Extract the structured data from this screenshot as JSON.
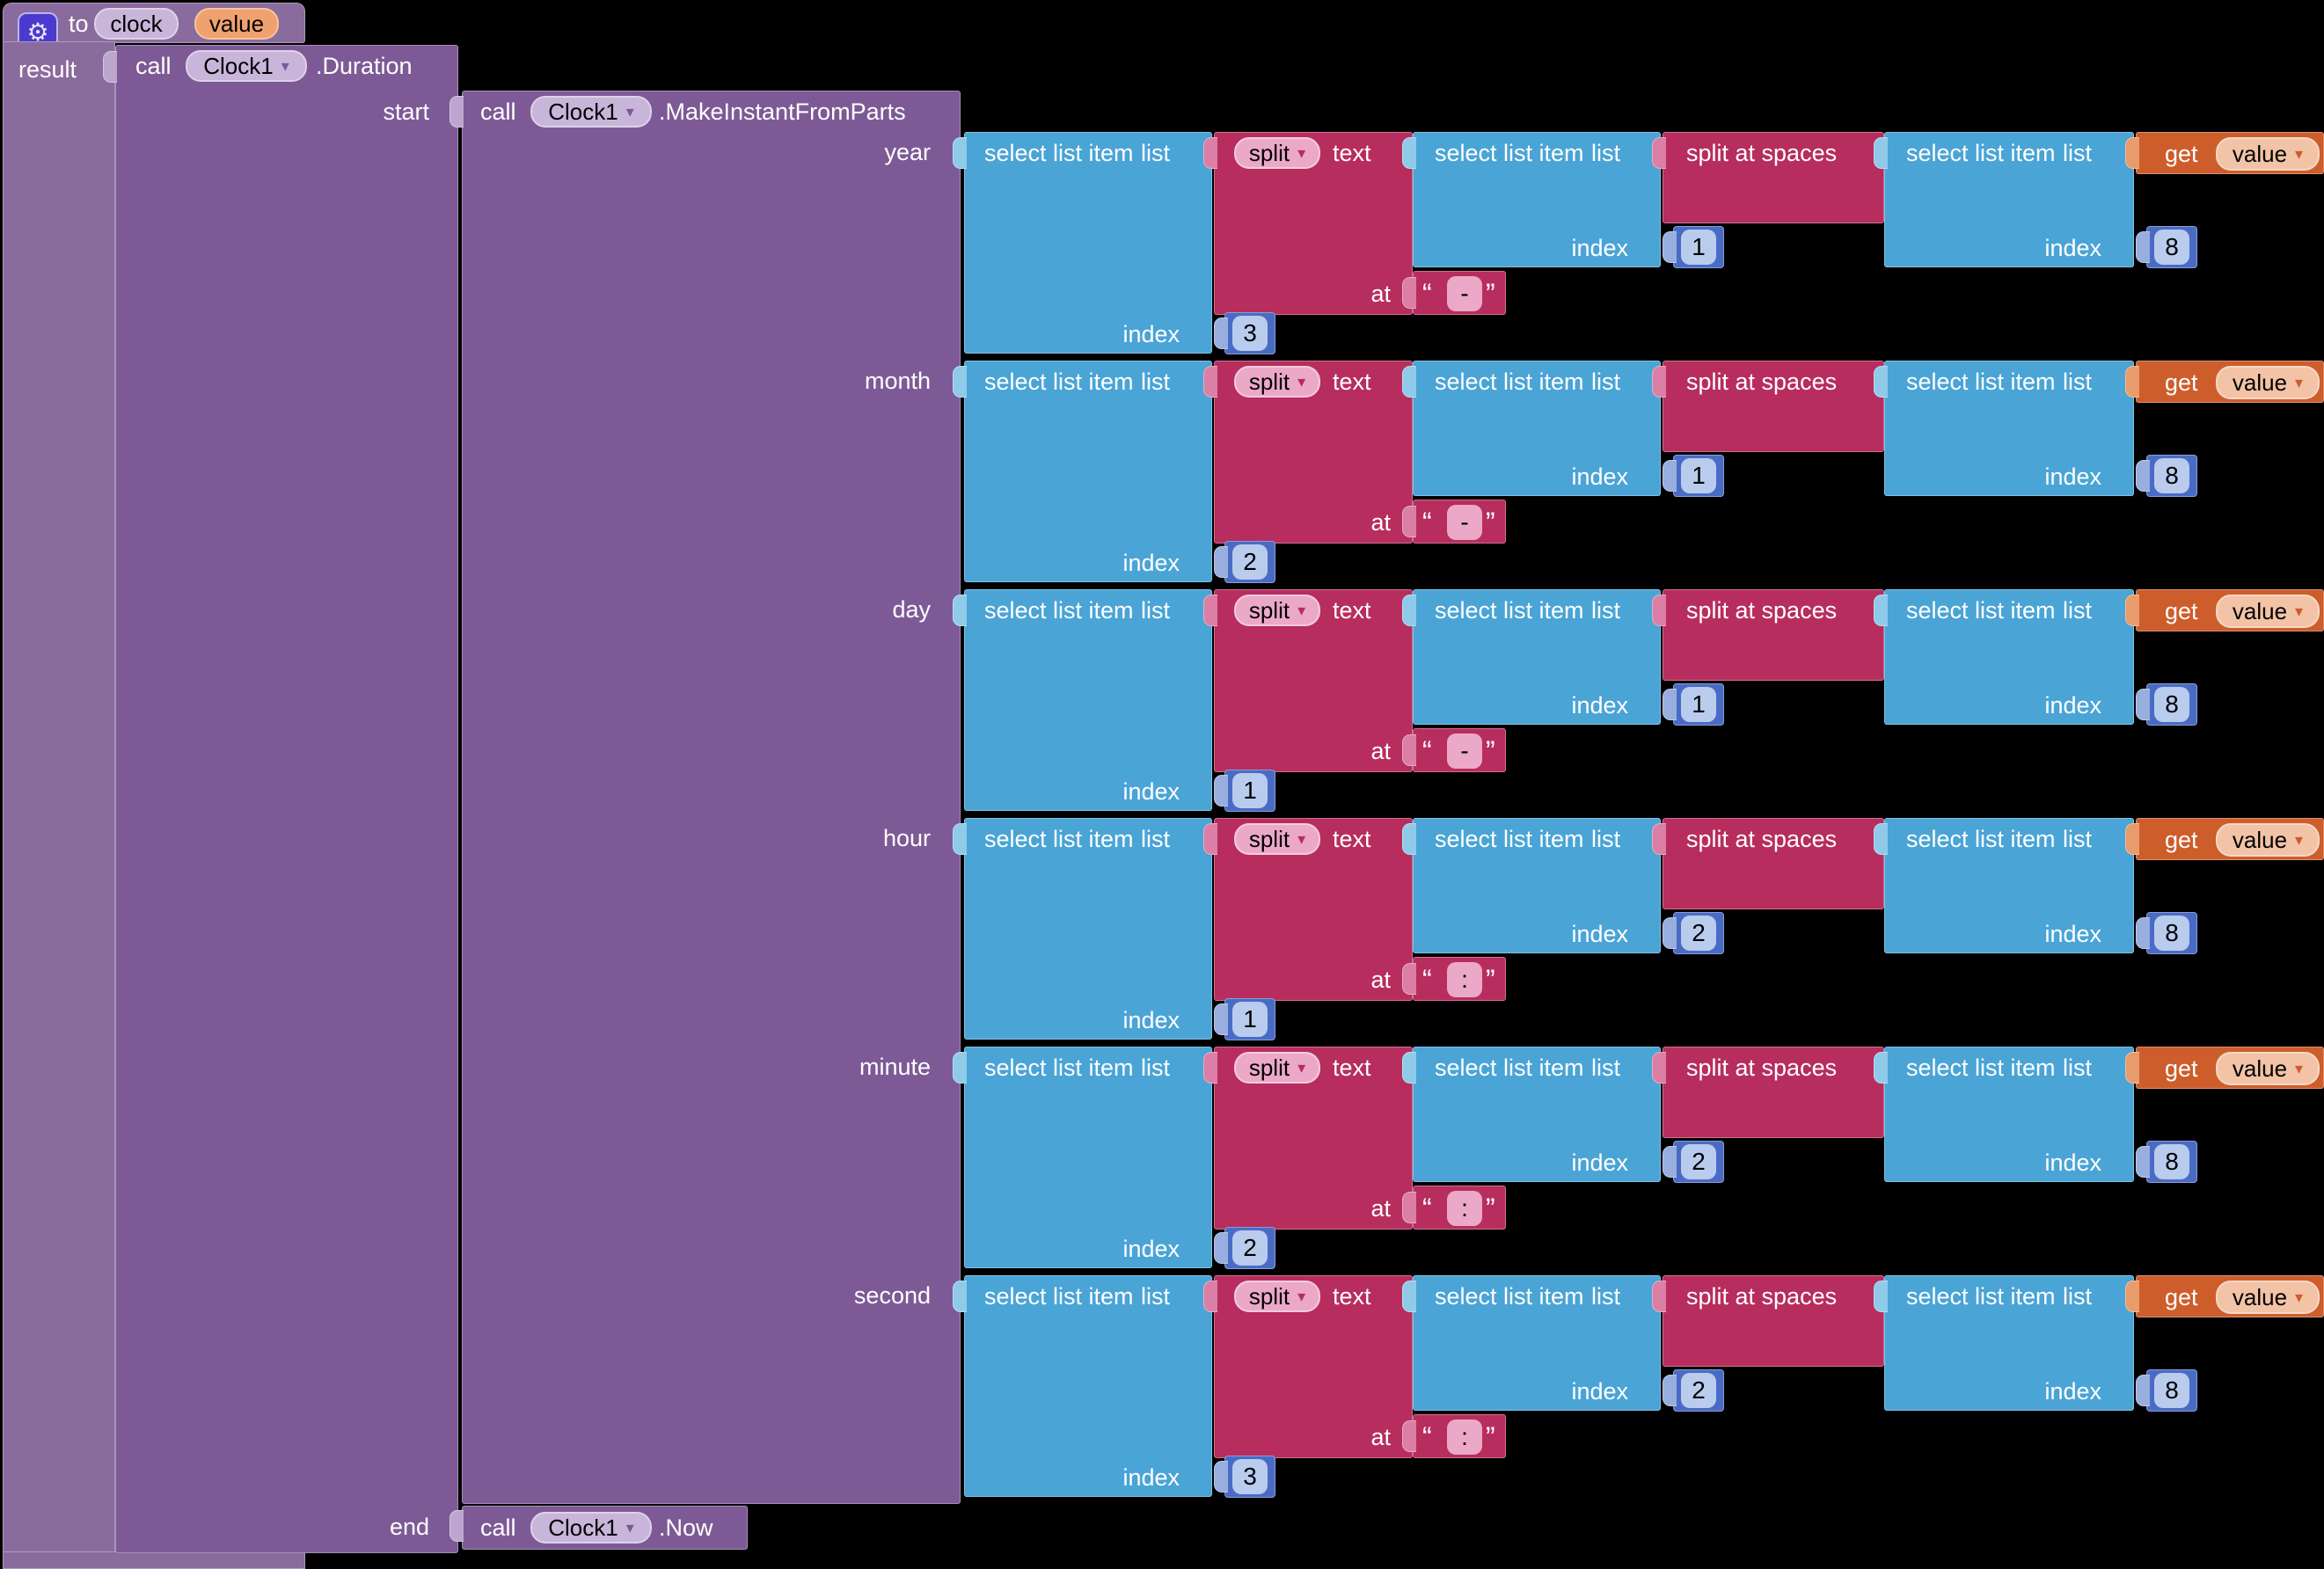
{
  "procedure": {
    "to": "to",
    "name": "clock",
    "param": "value"
  },
  "labels": {
    "result": "result",
    "start": "start",
    "end": "end",
    "call": "call",
    "index": "index",
    "list": "list",
    "text": "text",
    "at": "at",
    "get": "get",
    "select_list_item": "select list item",
    "split": "split",
    "split_at_spaces": "split at spaces"
  },
  "calls": {
    "component": "Clock1",
    "duration": ".Duration",
    "make_instant": ".MakeInstantFromParts",
    "now": ".Now",
    "get_variable": "value"
  },
  "rows": [
    {
      "param": "year",
      "list_index": "3",
      "split_at": "-",
      "inner_index": "1",
      "word_index": "8"
    },
    {
      "param": "month",
      "list_index": "2",
      "split_at": "-",
      "inner_index": "1",
      "word_index": "8"
    },
    {
      "param": "day",
      "list_index": "1",
      "split_at": "-",
      "inner_index": "1",
      "word_index": "8"
    },
    {
      "param": "hour",
      "list_index": "1",
      "split_at": ":",
      "inner_index": "2",
      "word_index": "8"
    },
    {
      "param": "minute",
      "list_index": "2",
      "split_at": ":",
      "inner_index": "2",
      "word_index": "8"
    },
    {
      "param": "second",
      "list_index": "3",
      "split_at": ":",
      "inner_index": "2",
      "word_index": "8"
    }
  ],
  "colors": {
    "procedure_purple": "#8A6B9D",
    "component_call_purple": "#7D5A95",
    "list_blue": "#4AA4D6",
    "text_crimson": "#B72D5E",
    "number_blue": "#4A6BC4",
    "variable_orange": "#CD5D2B",
    "background": "#000000"
  }
}
